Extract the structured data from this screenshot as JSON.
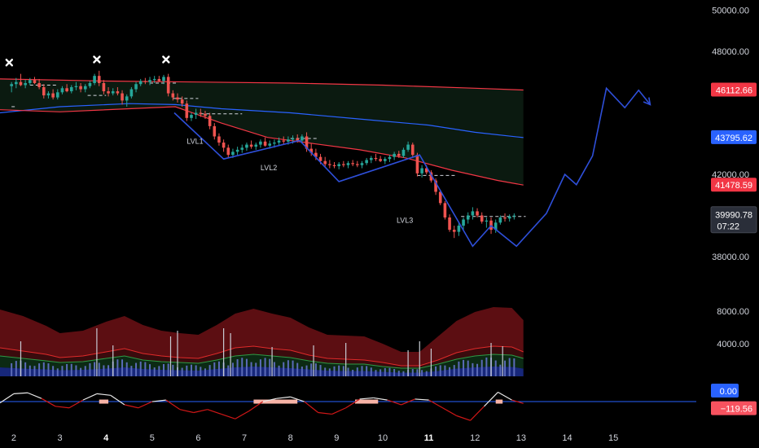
{
  "chart_data": {
    "type": "candlestick",
    "price_axis": {
      "ticks": [
        "50000.00",
        "48000.00",
        "42000.00",
        "38000.00"
      ],
      "tick_values": [
        50000,
        48000,
        42000,
        38000
      ],
      "ylim": [
        37200,
        50300
      ]
    },
    "x_axis": {
      "ticks": [
        {
          "label": "2",
          "day": 2,
          "bold": false
        },
        {
          "label": "3",
          "day": 3,
          "bold": false
        },
        {
          "label": "4",
          "day": 4,
          "bold": true
        },
        {
          "label": "5",
          "day": 5,
          "bold": false
        },
        {
          "label": "6",
          "day": 6,
          "bold": false
        },
        {
          "label": "7",
          "day": 7,
          "bold": false
        },
        {
          "label": "8",
          "day": 8,
          "bold": false
        },
        {
          "label": "9",
          "day": 9,
          "bold": false
        },
        {
          "label": "10",
          "day": 10,
          "bold": false
        },
        {
          "label": "11",
          "day": 11,
          "bold": true
        },
        {
          "label": "12",
          "day": 12,
          "bold": false
        },
        {
          "label": "13",
          "day": 13,
          "bold": false
        },
        {
          "label": "14",
          "day": 14,
          "bold": false
        },
        {
          "label": "15",
          "day": 15,
          "bold": false
        }
      ],
      "xlim": [
        1.7,
        16.8
      ]
    },
    "price_badges": [
      {
        "label": "46112.66",
        "value": 46112.66,
        "color": "#f23645"
      },
      {
        "label": "43795.62",
        "value": 43795.62,
        "color": "#2962ff"
      },
      {
        "label": "41478.59",
        "value": 41478.59,
        "color": "#f23645"
      }
    ],
    "last_price": {
      "label": "39990.78",
      "countdown": "07:22",
      "value": 39990.78
    },
    "upper_band": [
      [
        1.7,
        46650
      ],
      [
        4,
        46550
      ],
      [
        6,
        46500
      ],
      [
        8,
        46450
      ],
      [
        10,
        46350
      ],
      [
        12,
        46200
      ],
      [
        13.05,
        46112.66
      ]
    ],
    "middle_band": [
      [
        1.7,
        45000
      ],
      [
        3,
        45300
      ],
      [
        4.5,
        45450
      ],
      [
        5.5,
        45400
      ],
      [
        6.5,
        45200
      ],
      [
        8,
        45000
      ],
      [
        9.5,
        44700
      ],
      [
        11,
        44400
      ],
      [
        12,
        44050
      ],
      [
        13.05,
        43795.62
      ]
    ],
    "lower_band": [
      [
        1.7,
        45150
      ],
      [
        3,
        45050
      ],
      [
        4.5,
        45200
      ],
      [
        5.5,
        45300
      ],
      [
        6.5,
        44500
      ],
      [
        7.5,
        43800
      ],
      [
        8.5,
        43500
      ],
      [
        9.5,
        43200
      ],
      [
        10.5,
        42800
      ],
      [
        11.5,
        42200
      ],
      [
        12.5,
        41700
      ],
      [
        13.05,
        41478.59
      ]
    ],
    "candles": [
      [
        1.95,
        46300,
        46500,
        46000,
        46400
      ],
      [
        2.05,
        46400,
        46700,
        46200,
        46500
      ],
      [
        2.15,
        46500,
        46900,
        46300,
        46350
      ],
      [
        2.25,
        46350,
        46600,
        46200,
        46450
      ],
      [
        2.35,
        46450,
        46700,
        46350,
        46600
      ],
      [
        2.45,
        46600,
        46750,
        46400,
        46450
      ],
      [
        2.55,
        46450,
        46650,
        46150,
        46250
      ],
      [
        2.65,
        46250,
        46400,
        45700,
        45850
      ],
      [
        2.75,
        45850,
        46050,
        45700,
        45950
      ],
      [
        2.85,
        45950,
        46150,
        45650,
        45750
      ],
      [
        2.95,
        45750,
        46150,
        45650,
        46000
      ],
      [
        3.05,
        46000,
        46300,
        45900,
        46200
      ],
      [
        3.15,
        46200,
        46400,
        46000,
        46050
      ],
      [
        3.25,
        46050,
        46350,
        45950,
        46250
      ],
      [
        3.35,
        46250,
        46500,
        46100,
        46300
      ],
      [
        3.45,
        46300,
        46450,
        46000,
        46150
      ],
      [
        3.55,
        46150,
        46400,
        46000,
        46300
      ],
      [
        3.65,
        46300,
        46550,
        46200,
        46450
      ],
      [
        3.75,
        46450,
        46900,
        46350,
        46800
      ],
      [
        3.85,
        46800,
        47050,
        46300,
        46450
      ],
      [
        3.95,
        46450,
        46600,
        45900,
        46050
      ],
      [
        4.05,
        46050,
        46250,
        45800,
        45950
      ],
      [
        4.15,
        45950,
        46200,
        45850,
        46050
      ],
      [
        4.25,
        46050,
        46250,
        45850,
        45950
      ],
      [
        4.35,
        45950,
        46100,
        45400,
        45600
      ],
      [
        4.45,
        45600,
        45900,
        45300,
        45800
      ],
      [
        4.55,
        45800,
        46250,
        45700,
        46150
      ],
      [
        4.65,
        46150,
        46500,
        46000,
        46400
      ],
      [
        4.75,
        46400,
        46650,
        46300,
        46550
      ],
      [
        4.85,
        46550,
        46700,
        46400,
        46500
      ],
      [
        4.95,
        46500,
        46750,
        46350,
        46600
      ],
      [
        5.05,
        46600,
        46800,
        46450,
        46650
      ],
      [
        5.15,
        46650,
        46800,
        46500,
        46550
      ],
      [
        5.25,
        46550,
        46850,
        46400,
        46750
      ],
      [
        5.35,
        46750,
        46900,
        45800,
        45950
      ],
      [
        5.45,
        45950,
        46100,
        45600,
        45750
      ],
      [
        5.55,
        45750,
        45950,
        45500,
        45650
      ],
      [
        5.65,
        45650,
        45800,
        45300,
        45450
      ],
      [
        5.75,
        45450,
        45600,
        44600,
        44750
      ],
      [
        5.85,
        44750,
        45000,
        44600,
        44900
      ],
      [
        5.95,
        44900,
        45200,
        44700,
        45000
      ],
      [
        6.05,
        45000,
        45200,
        44800,
        44950
      ],
      [
        6.15,
        44950,
        45100,
        44700,
        44850
      ],
      [
        6.25,
        44850,
        45000,
        44200,
        44350
      ],
      [
        6.35,
        44350,
        44500,
        43700,
        43850
      ],
      [
        6.45,
        43850,
        44000,
        43400,
        43550
      ],
      [
        6.55,
        43550,
        43700,
        43100,
        43300
      ],
      [
        6.65,
        43300,
        43450,
        42800,
        42950
      ],
      [
        6.75,
        42950,
        43250,
        42800,
        43100
      ],
      [
        6.85,
        43100,
        43350,
        42950,
        43200
      ],
      [
        6.95,
        43200,
        43450,
        43050,
        43300
      ],
      [
        7.05,
        43300,
        43550,
        43150,
        43450
      ],
      [
        7.15,
        43450,
        43650,
        43250,
        43350
      ],
      [
        7.25,
        43350,
        43550,
        43200,
        43450
      ],
      [
        7.35,
        43450,
        43700,
        43300,
        43600
      ],
      [
        7.45,
        43600,
        43800,
        43350,
        43400
      ],
      [
        7.55,
        43400,
        43650,
        43250,
        43500
      ],
      [
        7.65,
        43500,
        43700,
        43300,
        43550
      ],
      [
        7.75,
        43550,
        43800,
        43400,
        43650
      ],
      [
        7.85,
        43650,
        43850,
        43450,
        43600
      ],
      [
        7.95,
        43600,
        43850,
        43450,
        43700
      ],
      [
        8.05,
        43700,
        43900,
        43500,
        43750
      ],
      [
        8.15,
        43750,
        43950,
        43550,
        43650
      ],
      [
        8.25,
        43650,
        43950,
        43500,
        43850
      ],
      [
        8.35,
        43850,
        44050,
        43100,
        43250
      ],
      [
        8.45,
        43250,
        43500,
        42900,
        43050
      ],
      [
        8.55,
        43050,
        43250,
        42700,
        42850
      ],
      [
        8.65,
        42850,
        43000,
        42500,
        42650
      ],
      [
        8.75,
        42650,
        42850,
        42350,
        42500
      ],
      [
        8.85,
        42500,
        42700,
        42300,
        42450
      ],
      [
        8.95,
        42450,
        42600,
        42300,
        42400
      ],
      [
        9.05,
        42400,
        42600,
        42250,
        42500
      ],
      [
        9.15,
        42500,
        42650,
        42350,
        42450
      ],
      [
        9.25,
        42450,
        42650,
        42300,
        42550
      ],
      [
        9.35,
        42550,
        42700,
        42400,
        42500
      ],
      [
        9.45,
        42500,
        42650,
        42350,
        42450
      ],
      [
        9.55,
        42450,
        42650,
        42300,
        42550
      ],
      [
        9.65,
        42550,
        42800,
        42450,
        42700
      ],
      [
        9.75,
        42700,
        42900,
        42550,
        42800
      ],
      [
        9.85,
        42800,
        43000,
        42650,
        42750
      ],
      [
        9.95,
        42750,
        42900,
        42600,
        42650
      ],
      [
        10.05,
        42650,
        42850,
        42500,
        42750
      ],
      [
        10.15,
        42750,
        42950,
        42600,
        42850
      ],
      [
        10.25,
        42850,
        43100,
        42700,
        43000
      ],
      [
        10.35,
        43000,
        43150,
        42800,
        42900
      ],
      [
        10.45,
        42900,
        43300,
        42800,
        43200
      ],
      [
        10.55,
        43200,
        43600,
        43100,
        43450
      ],
      [
        10.65,
        43450,
        43550,
        42850,
        42950
      ],
      [
        10.75,
        42950,
        43050,
        41900,
        42050
      ],
      [
        10.85,
        42050,
        42450,
        41850,
        42300
      ],
      [
        10.95,
        42300,
        42450,
        42000,
        42100
      ],
      [
        11.05,
        42100,
        42200,
        41600,
        41700
      ],
      [
        11.15,
        41700,
        41800,
        41000,
        41150
      ],
      [
        11.25,
        41150,
        41250,
        40500,
        40600
      ],
      [
        11.35,
        40600,
        40700,
        39800,
        39900
      ],
      [
        11.45,
        39900,
        40050,
        39200,
        39300
      ],
      [
        11.55,
        39300,
        39500,
        38900,
        39200
      ],
      [
        11.65,
        39200,
        39700,
        39000,
        39500
      ],
      [
        11.75,
        39500,
        39900,
        39300,
        39800
      ],
      [
        11.85,
        39800,
        40150,
        39600,
        40000
      ],
      [
        11.95,
        40000,
        40400,
        39800,
        40200
      ],
      [
        12.05,
        40200,
        40350,
        39900,
        40000
      ],
      [
        12.15,
        40000,
        40150,
        39600,
        39700
      ],
      [
        12.25,
        39700,
        39900,
        39400,
        39750
      ],
      [
        12.35,
        39750,
        39900,
        39100,
        39300
      ],
      [
        12.45,
        39300,
        39800,
        39150,
        39650
      ],
      [
        12.55,
        39650,
        40000,
        39550,
        39900
      ],
      [
        12.65,
        39900,
        40100,
        39700,
        39850
      ],
      [
        12.75,
        39850,
        40050,
        39700,
        39950
      ],
      [
        12.85,
        39950,
        40100,
        39800,
        39990.78
      ]
    ],
    "sr_levels": [
      [
        1.95,
        2.05,
        45300
      ],
      [
        2.35,
        2.95,
        46350
      ],
      [
        3.6,
        4.0,
        45850
      ],
      [
        4.95,
        5.55,
        46450
      ],
      [
        5.45,
        6.0,
        45700
      ],
      [
        6.05,
        6.95,
        44950
      ],
      [
        8.0,
        8.6,
        43750
      ],
      [
        10.75,
        11.6,
        41950
      ],
      [
        11.7,
        13.1,
        39950
      ]
    ],
    "swing_markers": [
      [
        1.9,
        47450
      ],
      [
        3.8,
        47600
      ],
      [
        5.3,
        47600
      ]
    ],
    "projection_path": [
      [
        5.48,
        45000
      ],
      [
        6.55,
        42750
      ],
      [
        8.2,
        43650
      ],
      [
        9.05,
        41650
      ],
      [
        10.8,
        42950
      ],
      [
        11.95,
        38500
      ],
      [
        12.35,
        39500
      ],
      [
        12.9,
        38500
      ],
      [
        13.55,
        40100
      ],
      [
        13.95,
        42000
      ],
      [
        14.2,
        41500
      ],
      [
        14.55,
        42900
      ],
      [
        14.85,
        46200
      ],
      [
        15.25,
        45250
      ],
      [
        15.55,
        46100
      ],
      [
        15.8,
        45400
      ]
    ],
    "annotations": [
      {
        "text": "LVL1",
        "x": 5.75,
        "y": 43500
      },
      {
        "text": "LVL2",
        "x": 7.35,
        "y": 42200
      },
      {
        "text": "LVL3",
        "x": 10.3,
        "y": 39650
      }
    ],
    "volume_panel": {
      "ticks": [
        "8000.00",
        "4000.00"
      ],
      "tick_values": [
        8000,
        4000
      ],
      "ylim": [
        0,
        10400
      ],
      "x": [
        1.7,
        2.2,
        2.7,
        3.0,
        3.5,
        4.0,
        4.4,
        4.8,
        5.2,
        5.6,
        6.0,
        6.4,
        6.8,
        7.2,
        7.6,
        8.0,
        8.4,
        8.8,
        9.2,
        9.6,
        10.0,
        10.4,
        10.8,
        11.2,
        11.6,
        12.0,
        12.4,
        12.8,
        13.05
      ],
      "upper": [
        8200,
        7400,
        6200,
        5300,
        5600,
        6700,
        7400,
        6300,
        5600,
        5300,
        5100,
        6300,
        7700,
        8300,
        7700,
        7200,
        6000,
        5100,
        5000,
        4900,
        4000,
        3000,
        3000,
        4900,
        6800,
        7900,
        8500,
        8400,
        6900
      ],
      "red_line": [
        3500,
        3100,
        2700,
        2300,
        2500,
        3000,
        3400,
        2800,
        2500,
        2300,
        2200,
        2800,
        3500,
        3700,
        3400,
        3200,
        2600,
        2200,
        2100,
        2000,
        1700,
        1300,
        1300,
        2000,
        2900,
        3400,
        3700,
        3600,
        3000
      ],
      "green_line": [
        2500,
        2200,
        1900,
        1700,
        1800,
        2200,
        2500,
        2000,
        1800,
        1700,
        1600,
        2000,
        2500,
        2700,
        2500,
        2300,
        1900,
        1600,
        1500,
        1500,
        1200,
        1000,
        1000,
        1500,
        2100,
        2500,
        2700,
        2600,
        2200
      ],
      "blue_top": [
        1100,
        950,
        850,
        750,
        800,
        950,
        1100,
        900,
        800,
        750,
        700,
        900,
        1100,
        1200,
        1100,
        1000,
        850,
        700,
        650,
        650,
        550,
        450,
        450,
        650,
        950,
        1100,
        1200,
        1150,
        950
      ],
      "spikes": [
        [
          2.15,
          4300
        ],
        [
          3.8,
          5900
        ],
        [
          4.15,
          3800
        ],
        [
          5.4,
          4900
        ],
        [
          5.55,
          5600
        ],
        [
          6.55,
          5900
        ],
        [
          6.7,
          5300
        ],
        [
          7.6,
          3600
        ],
        [
          8.5,
          3800
        ],
        [
          9.2,
          4100
        ],
        [
          10.55,
          3200
        ],
        [
          10.8,
          4300
        ],
        [
          11.05,
          3400
        ],
        [
          12.35,
          4100
        ],
        [
          12.6,
          3700
        ]
      ]
    },
    "oscillator_panel": {
      "badges": [
        {
          "label": "0.00",
          "value": 0,
          "color": "#2962ff"
        },
        {
          "label": "−119.56",
          "value": -119.56,
          "color": "#f7525f"
        }
      ],
      "ylim": [
        -700,
        650
      ],
      "zero_line": 0,
      "x": [
        1.7,
        2.0,
        2.3,
        2.6,
        2.9,
        3.2,
        3.5,
        3.8,
        4.1,
        4.4,
        4.7,
        5.0,
        5.3,
        5.6,
        5.9,
        6.2,
        6.5,
        6.8,
        7.1,
        7.4,
        7.7,
        8.0,
        8.3,
        8.6,
        8.9,
        9.2,
        9.5,
        9.8,
        10.1,
        10.4,
        10.7,
        11.0,
        11.3,
        11.6,
        11.9,
        12.2,
        12.5,
        12.8,
        13.05
      ],
      "values": [
        -40,
        250,
        280,
        100,
        -150,
        -200,
        50,
        250,
        200,
        -100,
        -200,
        0,
        50,
        -250,
        -350,
        -250,
        -400,
        -550,
        -300,
        0,
        100,
        150,
        0,
        -350,
        -400,
        -200,
        80,
        120,
        50,
        -100,
        80,
        50,
        -200,
        -450,
        -600,
        -150,
        300,
        50,
        -60
      ],
      "highlights": [
        [
          3.85,
          4.05
        ],
        [
          7.2,
          8.15
        ],
        [
          9.4,
          9.9
        ],
        [
          12.45,
          12.6
        ]
      ]
    }
  }
}
